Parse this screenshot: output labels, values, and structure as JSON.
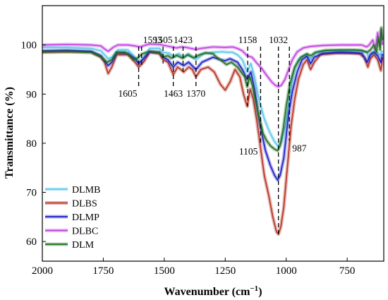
{
  "chart_data": {
    "type": "line",
    "title": "",
    "xlabel_main": "Wavenumber (cm",
    "xlabel_sup": "−1",
    "xlabel_tail": ")",
    "ylabel": "Transmittance (%)",
    "xlim": [
      2000,
      600
    ],
    "x_reversed": true,
    "ylim": [
      56,
      108
    ],
    "x_ticks": [
      2000,
      1750,
      1500,
      1250,
      1000,
      750
    ],
    "y_ticks": [
      60,
      70,
      80,
      90,
      100
    ],
    "legend_placement": "bottom-left",
    "grid": false,
    "series": [
      {
        "name": "DLMB",
        "color": "#5bc8ea",
        "points": [
          [
            2000,
            99.5
          ],
          [
            1900,
            99.5
          ],
          [
            1800,
            99.3
          ],
          [
            1760,
            98.8
          ],
          [
            1730,
            97.2
          ],
          [
            1715,
            97.5
          ],
          [
            1690,
            99.0
          ],
          [
            1650,
            99.0
          ],
          [
            1620,
            97.5
          ],
          [
            1600,
            96.5
          ],
          [
            1580,
            97.8
          ],
          [
            1560,
            99.3
          ],
          [
            1520,
            99.3
          ],
          [
            1505,
            98.5
          ],
          [
            1480,
            98.3
          ],
          [
            1460,
            97.5
          ],
          [
            1440,
            98.2
          ],
          [
            1420,
            97.4
          ],
          [
            1400,
            98.2
          ],
          [
            1370,
            97.0
          ],
          [
            1340,
            98.2
          ],
          [
            1300,
            98.5
          ],
          [
            1260,
            98.6
          ],
          [
            1240,
            98.5
          ],
          [
            1220,
            98.5
          ],
          [
            1200,
            98.0
          ],
          [
            1180,
            97.0
          ],
          [
            1160,
            94.5
          ],
          [
            1145,
            96.2
          ],
          [
            1130,
            93.5
          ],
          [
            1110,
            88.5
          ],
          [
            1090,
            85.0
          ],
          [
            1070,
            82.5
          ],
          [
            1050,
            80.5
          ],
          [
            1035,
            79.5
          ],
          [
            1020,
            80.2
          ],
          [
            1000,
            84.5
          ],
          [
            985,
            90.0
          ],
          [
            970,
            94.5
          ],
          [
            950,
            97.0
          ],
          [
            920,
            98.0
          ],
          [
            900,
            97.2
          ],
          [
            880,
            98.3
          ],
          [
            850,
            98.7
          ],
          [
            800,
            98.8
          ],
          [
            760,
            98.8
          ],
          [
            700,
            98.8
          ],
          [
            670,
            98.5
          ],
          [
            660,
            97.2
          ],
          [
            650,
            98.5
          ],
          [
            630,
            98.6
          ],
          [
            615,
            98.0
          ],
          [
            605,
            98.8
          ]
        ]
      },
      {
        "name": "DLBS",
        "color": "#b53222",
        "points": [
          [
            2000,
            98.5
          ],
          [
            1900,
            98.6
          ],
          [
            1800,
            98.5
          ],
          [
            1760,
            97.5
          ],
          [
            1745,
            96.5
          ],
          [
            1730,
            94.2
          ],
          [
            1715,
            95.5
          ],
          [
            1695,
            98.0
          ],
          [
            1650,
            98.0
          ],
          [
            1620,
            96.5
          ],
          [
            1605,
            95.5
          ],
          [
            1585,
            96.5
          ],
          [
            1560,
            98.5
          ],
          [
            1520,
            98.2
          ],
          [
            1505,
            97.0
          ],
          [
            1485,
            96.5
          ],
          [
            1463,
            94.0
          ],
          [
            1445,
            95.5
          ],
          [
            1420,
            94.5
          ],
          [
            1400,
            95.5
          ],
          [
            1385,
            95.0
          ],
          [
            1370,
            93.5
          ],
          [
            1350,
            95.0
          ],
          [
            1320,
            95.5
          ],
          [
            1295,
            94.5
          ],
          [
            1270,
            92.0
          ],
          [
            1250,
            90.8
          ],
          [
            1230,
            92.5
          ],
          [
            1210,
            95.0
          ],
          [
            1190,
            93.5
          ],
          [
            1175,
            90.0
          ],
          [
            1160,
            87.5
          ],
          [
            1148,
            91.0
          ],
          [
            1135,
            89.0
          ],
          [
            1120,
            84.5
          ],
          [
            1105,
            79.0
          ],
          [
            1090,
            73.5
          ],
          [
            1070,
            69.0
          ],
          [
            1055,
            65.0
          ],
          [
            1040,
            62.0
          ],
          [
            1032,
            61.5
          ],
          [
            1022,
            63.0
          ],
          [
            1010,
            67.0
          ],
          [
            1000,
            72.5
          ],
          [
            990,
            78.0
          ],
          [
            980,
            83.5
          ],
          [
            965,
            89.0
          ],
          [
            950,
            93.0
          ],
          [
            930,
            96.0
          ],
          [
            915,
            97.0
          ],
          [
            900,
            95.0
          ],
          [
            885,
            96.5
          ],
          [
            860,
            98.0
          ],
          [
            800,
            98.3
          ],
          [
            740,
            98.3
          ],
          [
            700,
            98.2
          ],
          [
            680,
            97.5
          ],
          [
            665,
            95.5
          ],
          [
            655,
            97.2
          ],
          [
            640,
            98.0
          ],
          [
            625,
            97.0
          ],
          [
            612,
            94.8
          ],
          [
            605,
            97.5
          ]
        ]
      },
      {
        "name": "DLMP",
        "color": "#1a1ec6",
        "points": [
          [
            2000,
            98.8
          ],
          [
            1900,
            98.9
          ],
          [
            1800,
            98.7
          ],
          [
            1760,
            97.8
          ],
          [
            1730,
            95.8
          ],
          [
            1715,
            96.5
          ],
          [
            1695,
            98.4
          ],
          [
            1650,
            98.3
          ],
          [
            1620,
            97.2
          ],
          [
            1605,
            96.2
          ],
          [
            1585,
            97.2
          ],
          [
            1560,
            98.6
          ],
          [
            1520,
            98.5
          ],
          [
            1505,
            97.5
          ],
          [
            1485,
            97.0
          ],
          [
            1463,
            95.5
          ],
          [
            1445,
            96.5
          ],
          [
            1420,
            95.8
          ],
          [
            1400,
            96.5
          ],
          [
            1370,
            95.0
          ],
          [
            1345,
            96.5
          ],
          [
            1300,
            97.5
          ],
          [
            1270,
            97.0
          ],
          [
            1250,
            96.8
          ],
          [
            1230,
            97.2
          ],
          [
            1200,
            96.5
          ],
          [
            1180,
            95.0
          ],
          [
            1160,
            93.0
          ],
          [
            1145,
            94.5
          ],
          [
            1130,
            91.0
          ],
          [
            1115,
            86.0
          ],
          [
            1100,
            82.0
          ],
          [
            1085,
            78.5
          ],
          [
            1065,
            75.5
          ],
          [
            1048,
            73.5
          ],
          [
            1035,
            72.5
          ],
          [
            1025,
            73.5
          ],
          [
            1010,
            77.0
          ],
          [
            1000,
            81.5
          ],
          [
            990,
            86.0
          ],
          [
            975,
            90.5
          ],
          [
            955,
            94.5
          ],
          [
            935,
            97.0
          ],
          [
            915,
            97.7
          ],
          [
            900,
            96.2
          ],
          [
            885,
            97.5
          ],
          [
            850,
            98.3
          ],
          [
            780,
            98.5
          ],
          [
            720,
            98.4
          ],
          [
            690,
            98.3
          ],
          [
            668,
            96.5
          ],
          [
            655,
            98.0
          ],
          [
            640,
            98.5
          ],
          [
            625,
            97.8
          ],
          [
            612,
            96.5
          ],
          [
            605,
            98.2
          ]
        ]
      },
      {
        "name": "DLBC",
        "color": "#c040e0",
        "points": [
          [
            2000,
            100.0
          ],
          [
            1900,
            100.1
          ],
          [
            1800,
            100.0
          ],
          [
            1760,
            99.8
          ],
          [
            1745,
            99.2
          ],
          [
            1730,
            98.7
          ],
          [
            1710,
            99.5
          ],
          [
            1690,
            100.0
          ],
          [
            1650,
            100.0
          ],
          [
            1620,
            99.8
          ],
          [
            1600,
            99.6
          ],
          [
            1580,
            99.9
          ],
          [
            1560,
            100.2
          ],
          [
            1520,
            100.1
          ],
          [
            1500,
            99.9
          ],
          [
            1470,
            99.6
          ],
          [
            1450,
            99.4
          ],
          [
            1430,
            99.6
          ],
          [
            1410,
            99.5
          ],
          [
            1390,
            99.3
          ],
          [
            1370,
            99.1
          ],
          [
            1350,
            99.3
          ],
          [
            1300,
            99.6
          ],
          [
            1250,
            99.5
          ],
          [
            1220,
            99.6
          ],
          [
            1200,
            99.3
          ],
          [
            1180,
            98.8
          ],
          [
            1160,
            97.8
          ],
          [
            1140,
            97.5
          ],
          [
            1120,
            96.3
          ],
          [
            1100,
            95.2
          ],
          [
            1080,
            93.8
          ],
          [
            1060,
            92.5
          ],
          [
            1045,
            91.8
          ],
          [
            1032,
            91.5
          ],
          [
            1020,
            91.8
          ],
          [
            1005,
            93.0
          ],
          [
            990,
            95.0
          ],
          [
            975,
            97.0
          ],
          [
            955,
            98.6
          ],
          [
            930,
            99.4
          ],
          [
            900,
            99.7
          ],
          [
            850,
            99.9
          ],
          [
            780,
            100.0
          ],
          [
            720,
            100.0
          ],
          [
            690,
            100.0
          ],
          [
            670,
            99.6
          ],
          [
            660,
            100.0
          ],
          [
            645,
            101.0
          ],
          [
            635,
            99.0
          ],
          [
            625,
            102.5
          ],
          [
            618,
            100.0
          ],
          [
            612,
            103.0
          ],
          [
            605,
            100.0
          ]
        ]
      },
      {
        "name": "DLM",
        "color": "#1e6e1e",
        "points": [
          [
            2000,
            98.6
          ],
          [
            1900,
            98.7
          ],
          [
            1800,
            98.5
          ],
          [
            1765,
            97.8
          ],
          [
            1735,
            96.5
          ],
          [
            1715,
            97.0
          ],
          [
            1695,
            98.5
          ],
          [
            1660,
            98.5
          ],
          [
            1640,
            97.8
          ],
          [
            1625,
            97.0
          ],
          [
            1610,
            97.3
          ],
          [
            1590,
            98.2
          ],
          [
            1560,
            98.7
          ],
          [
            1520,
            98.5
          ],
          [
            1505,
            97.6
          ],
          [
            1485,
            97.8
          ],
          [
            1470,
            97.3
          ],
          [
            1450,
            97.9
          ],
          [
            1425,
            97.3
          ],
          [
            1405,
            98.0
          ],
          [
            1380,
            97.4
          ],
          [
            1355,
            98.0
          ],
          [
            1330,
            98.4
          ],
          [
            1300,
            98.2
          ],
          [
            1285,
            97.5
          ],
          [
            1265,
            96.8
          ],
          [
            1245,
            96.0
          ],
          [
            1225,
            96.5
          ],
          [
            1200,
            95.5
          ],
          [
            1185,
            94.5
          ],
          [
            1170,
            93.5
          ],
          [
            1160,
            91.5
          ],
          [
            1150,
            93.5
          ],
          [
            1140,
            92.0
          ],
          [
            1125,
            88.5
          ],
          [
            1110,
            85.0
          ],
          [
            1095,
            82.0
          ],
          [
            1080,
            80.5
          ],
          [
            1065,
            79.5
          ],
          [
            1048,
            78.8
          ],
          [
            1035,
            78.5
          ],
          [
            1025,
            79.5
          ],
          [
            1012,
            83.0
          ],
          [
            1000,
            87.5
          ],
          [
            985,
            92.0
          ],
          [
            965,
            95.5
          ],
          [
            940,
            97.5
          ],
          [
            915,
            98.2
          ],
          [
            900,
            97.8
          ],
          [
            880,
            98.5
          ],
          [
            840,
            98.9
          ],
          [
            780,
            99.0
          ],
          [
            720,
            99.0
          ],
          [
            690,
            98.9
          ],
          [
            668,
            98.5
          ],
          [
            655,
            99.0
          ],
          [
            640,
            100.0
          ],
          [
            630,
            98.5
          ],
          [
            622,
            101.5
          ],
          [
            615,
            99.0
          ],
          [
            610,
            103.5
          ],
          [
            605,
            101.0
          ]
        ]
      }
    ],
    "dashed_markers": [
      {
        "x": 1593,
        "label": "1593",
        "label_pos": "top"
      },
      {
        "x": 1605,
        "label": "1605",
        "label_pos": "bottom"
      },
      {
        "x": 1505,
        "label": "1505",
        "label_pos": "top"
      },
      {
        "x": 1463,
        "label": "1463",
        "label_pos": "bottom"
      },
      {
        "x": 1423,
        "label": "1423",
        "label_pos": "top"
      },
      {
        "x": 1370,
        "label": "1370",
        "label_pos": "bottom"
      },
      {
        "x": 1158,
        "label": "1158",
        "label_pos": "top"
      },
      {
        "x": 1105,
        "label": "1105",
        "label_pos": "bottom"
      },
      {
        "x": 1032,
        "label": "1032",
        "label_pos": "top"
      },
      {
        "x": 987,
        "label": "987",
        "label_pos": "bottom"
      }
    ]
  }
}
